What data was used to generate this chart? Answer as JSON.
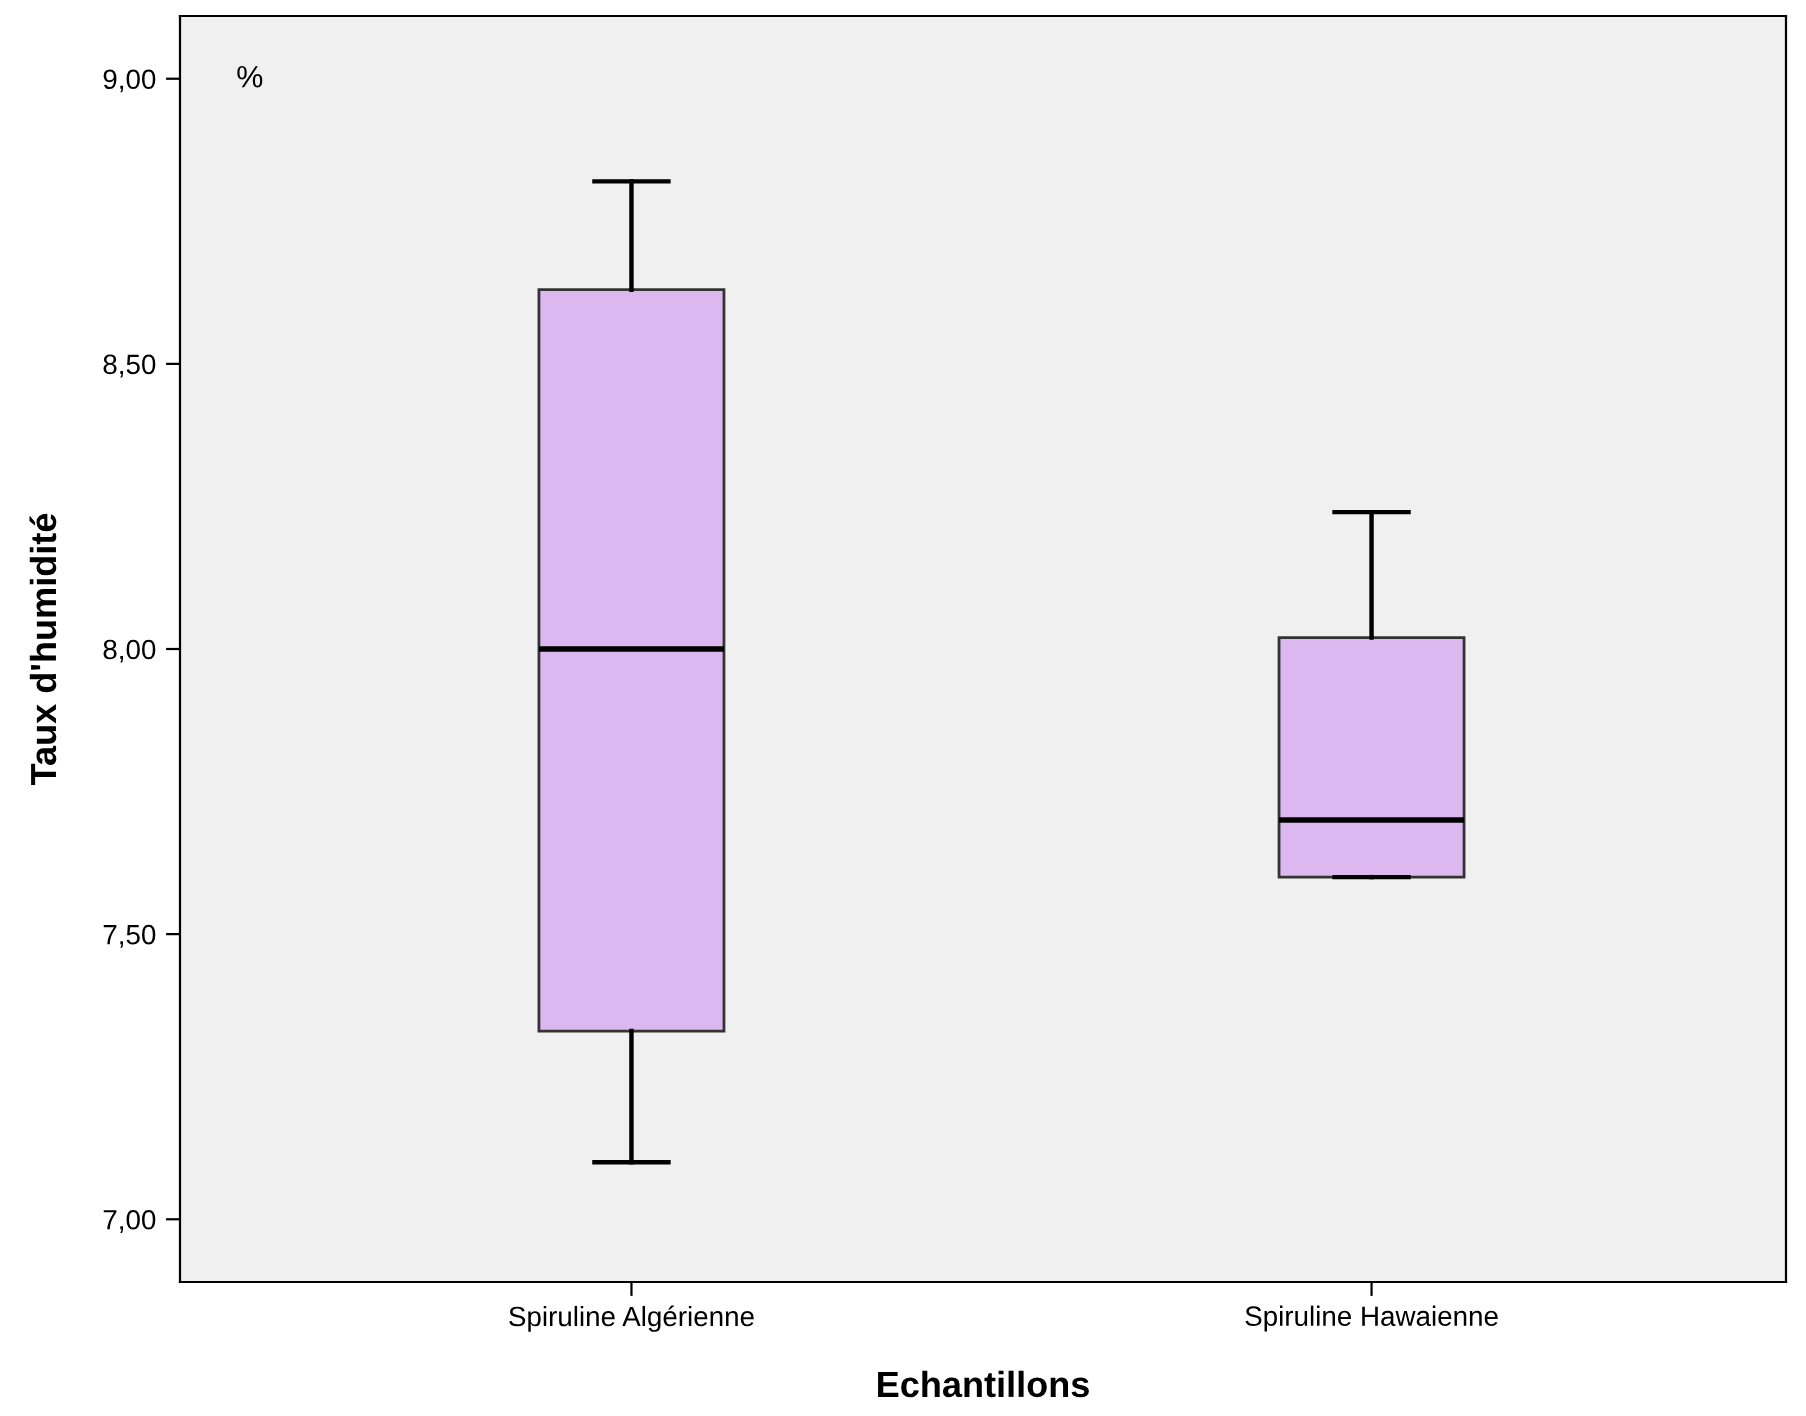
{
  "chart_data": {
    "type": "box",
    "xlabel": "Echantillons",
    "ylabel": "Taux d'humidité",
    "categories": [
      "Spiruline Algérienne",
      "Spiruline Hawaienne"
    ],
    "boxes": [
      {
        "low": 7.1,
        "q1": 7.33,
        "median": 8.0,
        "q3": 8.63,
        "high": 8.82
      },
      {
        "low": 7.6,
        "q1": 7.6,
        "median": 7.7,
        "q3": 8.02,
        "high": 8.24
      }
    ],
    "color": "#dcb8f0",
    "ylim": [
      6.89,
      9.11
    ],
    "yticks": [
      {
        "value": 7.0,
        "label": "7,00"
      },
      {
        "value": 7.5,
        "label": "7,50"
      },
      {
        "value": 8.0,
        "label": "8,00"
      },
      {
        "value": 8.5,
        "label": "8,50"
      },
      {
        "value": 9.0,
        "label": "9,00"
      }
    ],
    "annotations": [
      "%"
    ],
    "grid": false,
    "legend": false
  }
}
